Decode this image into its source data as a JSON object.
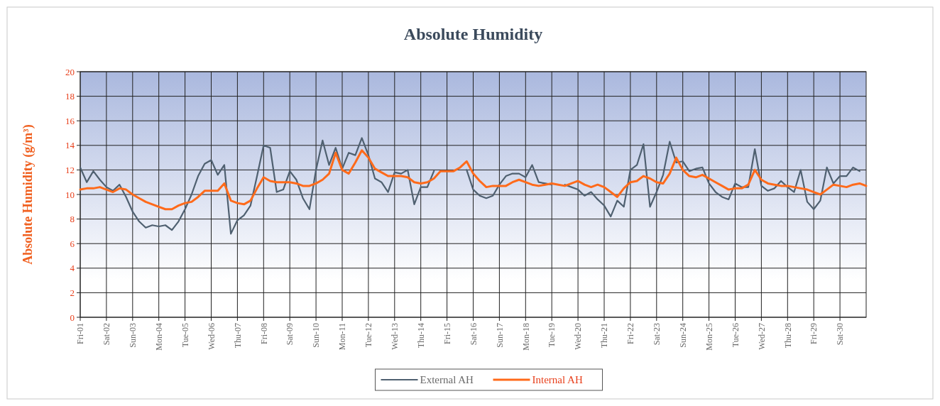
{
  "chart_data": {
    "type": "line",
    "title": "Absolute Humidity",
    "ylabel": "Absolute Humidity (g/m³)",
    "categories": [
      "Fri-01",
      null,
      null,
      null,
      "Sat-02",
      null,
      null,
      null,
      "Sun-03",
      null,
      null,
      null,
      "Mon-04",
      null,
      null,
      null,
      "Tue-05",
      null,
      null,
      null,
      "Wed-06",
      null,
      null,
      null,
      "Thu-07",
      null,
      null,
      null,
      "Fri-08",
      null,
      null,
      null,
      "Sat-09",
      null,
      null,
      null,
      "Sun-10",
      null,
      null,
      null,
      "Mon-11",
      null,
      null,
      null,
      "Tue-12",
      null,
      null,
      null,
      "Wed-13",
      null,
      null,
      null,
      "Thu-14",
      null,
      null,
      null,
      "Fri-15",
      null,
      null,
      null,
      "Sat-16",
      null,
      null,
      null,
      "Sun-17",
      null,
      null,
      null,
      "Mon-18",
      null,
      null,
      null,
      "Tue-19",
      null,
      null,
      null,
      "Wed-20",
      null,
      null,
      null,
      "Thu-21",
      null,
      null,
      null,
      "Fri-22",
      null,
      null,
      null,
      "Sat-23",
      null,
      null,
      null,
      "Sun-24",
      null,
      null,
      null,
      "Mon-25",
      null,
      null,
      null,
      "Tue-26",
      null,
      null,
      null,
      "Wed-27",
      null,
      null,
      null,
      "Thu-28",
      null,
      null,
      null,
      "Fri-29",
      null,
      null,
      null,
      "Sat-30",
      null,
      null,
      null,
      null
    ],
    "ylim": [
      0,
      20
    ],
    "yticks": [
      0,
      2,
      4,
      6,
      8,
      10,
      12,
      14,
      16,
      18,
      20
    ],
    "grid": true,
    "legend": "bottom",
    "line_style": "solid",
    "series": [
      {
        "name": "External AH",
        "color": "#4f6070",
        "values": [
          12.2,
          11.0,
          11.9,
          11.2,
          10.6,
          10.3,
          10.8,
          9.8,
          8.6,
          7.8,
          7.3,
          7.5,
          7.4,
          7.5,
          7.1,
          7.8,
          8.8,
          10.0,
          11.5,
          12.5,
          12.8,
          11.6,
          12.4,
          6.8,
          7.9,
          8.3,
          9.1,
          11.5,
          14.0,
          13.8,
          10.2,
          10.4,
          11.9,
          11.2,
          9.7,
          8.8,
          12.0,
          14.4,
          12.4,
          13.8,
          12.1,
          13.4,
          13.2,
          14.6,
          13.2,
          11.3,
          11.0,
          10.2,
          11.8,
          11.7,
          12.0,
          9.2,
          10.6,
          10.6,
          11.9,
          null,
          null,
          null,
          null,
          12.0,
          10.4,
          9.9,
          9.7,
          9.9,
          10.8,
          11.5,
          11.7,
          11.7,
          11.4,
          12.4,
          11.0,
          10.9,
          10.8,
          null,
          10.8,
          10.6,
          10.4,
          9.9,
          10.2,
          9.6,
          9.1,
          8.2,
          9.5,
          9.0,
          12.0,
          12.4,
          14.1,
          9.0,
          10.2,
          11.6,
          14.3,
          12.6,
          12.7,
          11.9,
          12.1,
          12.2,
          10.9,
          10.2,
          9.8,
          9.6,
          10.9,
          10.6,
          10.6,
          13.7,
          10.7,
          10.3,
          10.5,
          11.1,
          10.6,
          10.2,
          12.0,
          9.4,
          8.8,
          9.5,
          12.2,
          10.9,
          11.5,
          11.5,
          12.2,
          11.9,
          null
        ]
      },
      {
        "name": "Internal AH",
        "color": "#ff6a1a",
        "values": [
          10.4,
          10.5,
          10.5,
          10.6,
          10.4,
          10.2,
          10.5,
          10.4,
          10.0,
          9.7,
          9.4,
          9.2,
          9.0,
          8.8,
          8.8,
          9.1,
          9.3,
          9.4,
          9.8,
          10.3,
          10.3,
          10.3,
          10.9,
          9.5,
          9.3,
          9.2,
          9.5,
          10.5,
          11.4,
          11.1,
          11.0,
          11.0,
          11.0,
          10.9,
          10.7,
          10.7,
          10.9,
          11.2,
          11.7,
          13.4,
          12.0,
          11.7,
          12.6,
          13.6,
          13.0,
          12.1,
          11.8,
          11.5,
          11.5,
          11.5,
          11.4,
          11.0,
          10.9,
          11.0,
          11.3,
          11.9,
          11.9,
          11.9,
          12.2,
          12.7,
          11.7,
          11.1,
          10.6,
          10.7,
          10.7,
          10.7,
          11.0,
          11.2,
          11.0,
          10.8,
          10.7,
          10.8,
          10.9,
          10.8,
          10.7,
          10.9,
          11.1,
          10.8,
          10.6,
          10.8,
          10.6,
          10.2,
          9.8,
          10.5,
          11.0,
          11.1,
          11.5,
          11.3,
          11.0,
          10.9,
          11.7,
          13.0,
          12.0,
          11.5,
          11.4,
          11.6,
          11.3,
          11.0,
          10.7,
          10.4,
          10.5,
          10.5,
          10.8,
          12.0,
          11.2,
          10.9,
          10.8,
          10.7,
          10.7,
          10.6,
          10.5,
          10.4,
          10.2,
          10.0,
          10.4,
          10.8,
          10.7,
          10.6,
          10.8,
          10.9,
          10.7
        ]
      }
    ]
  }
}
